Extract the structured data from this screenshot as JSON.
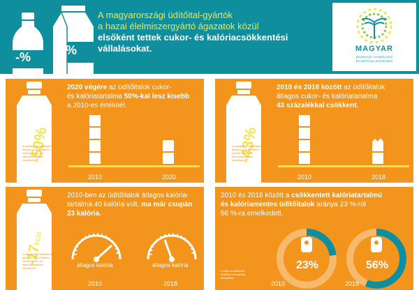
{
  "header": {
    "bottle_1_label": "-%",
    "bottle_2_label": "-%",
    "line_1": "A magyarországi üdítőital-gyártók",
    "line_2": "a hazai élelmiszergyártó ágazatok közül",
    "line_3": "elsőként tettek cukor- és kalóriacsökkentési",
    "line_4": "vállalásokat.",
    "logo_name": "MAGYAR",
    "logo_sub_1": "ÁSVÁNYVÍZ, GYÜMÖLCSLÉ",
    "logo_sub_2": "ÉS ÜDÍTŐITAL SZÖVETSÉG"
  },
  "panel_1": {
    "percent": "-50%",
    "text_bold_1": "2020 végére",
    "text_1": " az üdítőitalok cukor-",
    "text_2": "és kalóriatartalma ",
    "text_bold_2": "50%-kal lesz kisebb",
    "text_3": "a 2010-es értéknél.",
    "note": "A vállalás az üdítőitalok átlagos, 100 milliliterre vetített cukor- és kalóriatartalmára vonatkozik",
    "year_1": "2010",
    "year_2": "2020",
    "cubes_1": 4,
    "cubes_2": 2
  },
  "panel_2": {
    "percent": "-43%",
    "text_bold_1": "2010 és 2018 között",
    "text_1": " az üdítőitalok",
    "text_2": "átlagos cukor- és kalóriatartalma",
    "text_bold_2": "43 százalékkal csökkent.",
    "note": "A vállalás az üdítőitalok átlagos, 100 milliliterre vetített cukor- és kalóriatartalmára vonatkozik",
    "year_1": "2010",
    "year_2": "2018"
  },
  "panel_3": {
    "percent": "-17",
    "unit": "kcal",
    "text_1": "2010-ben az üdítőitalok átlagos kalória-",
    "text_2": "tartalma 40 kalória volt, ",
    "text_bold_1": "ma már csupán",
    "text_bold_2": "23 kalória.",
    "note": "A vállalás az üdítőitalok átlagos, 100 milliliterre vetített cukor- és kalóriatartalmára vonatkozik",
    "gauge_label_1": "átlagos kalória",
    "gauge_label_2": "átlagos kalória",
    "year_1": "2010",
    "year_2": "2018",
    "gauge_value_1": 40,
    "gauge_value_2": 23
  },
  "panel_4": {
    "text_1": "2010 és 2018 között a ",
    "text_bold_1": "csökkentett kalóriatartalmú",
    "text_bold_2": "és kalóriamentes üdítőitalok",
    "text_2": " aránya 23 %-ról",
    "text_3": "56 %-ra emelkedett.",
    "note": "A teljes értékesített üdítőital-mennyiség arányában",
    "pct_1": "23%",
    "pct_2": "56%",
    "year_1": "2010",
    "year_2": "2018",
    "share_1": 23,
    "share_2": 56
  },
  "colors": {
    "teal": "#0f8f9d",
    "orange": "#f3941d",
    "yellow": "#f3e64c",
    "white": "#ffffff"
  }
}
